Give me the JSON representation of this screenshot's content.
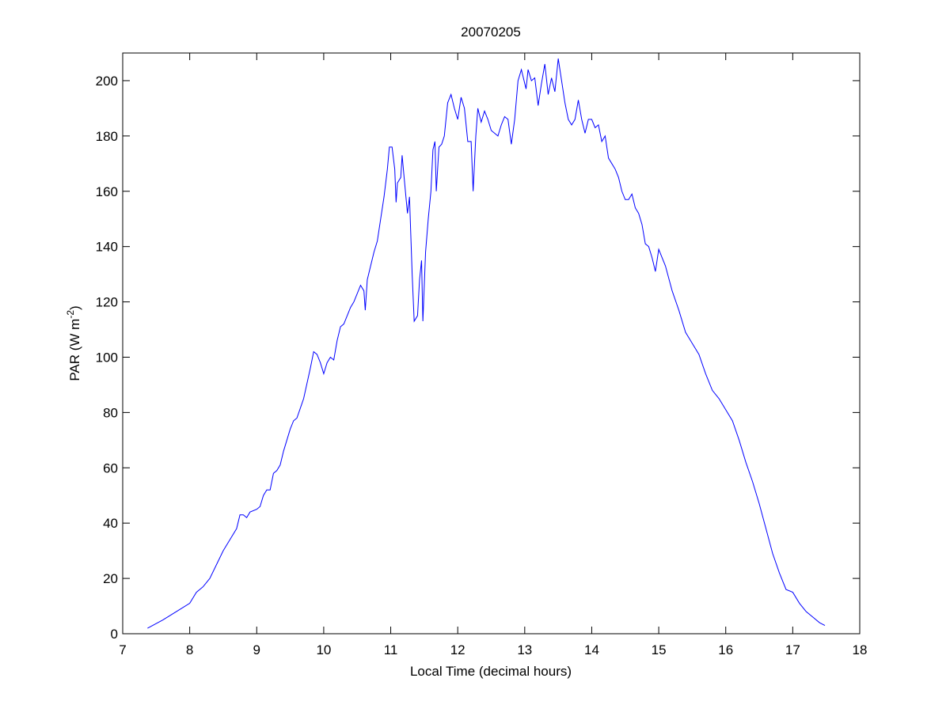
{
  "chart_data": {
    "type": "line",
    "title": "20070205",
    "xlabel": "Local Time (decimal hours)",
    "ylabel": [
      "PAR (W m",
      "-2",
      ")"
    ],
    "xlim": [
      7,
      18
    ],
    "xticks": [
      7,
      8,
      9,
      10,
      11,
      12,
      13,
      14,
      15,
      16,
      17,
      18
    ],
    "ylim": [
      0,
      210
    ],
    "yticks": [
      0,
      20,
      40,
      60,
      80,
      100,
      120,
      140,
      160,
      180,
      200
    ],
    "grid": false,
    "series": [
      {
        "color": "#0000ff",
        "x": [
          7.37,
          7.6,
          7.8,
          8.0,
          8.1,
          8.2,
          8.3,
          8.4,
          8.5,
          8.6,
          8.7,
          8.75,
          8.8,
          8.85,
          8.9,
          9.0,
          9.05,
          9.1,
          9.15,
          9.2,
          9.25,
          9.3,
          9.35,
          9.4,
          9.5,
          9.55,
          9.6,
          9.7,
          9.8,
          9.85,
          9.9,
          9.95,
          10.0,
          10.05,
          10.1,
          10.15,
          10.2,
          10.25,
          10.3,
          10.4,
          10.45,
          10.5,
          10.55,
          10.6,
          10.62,
          10.65,
          10.7,
          10.75,
          10.8,
          10.85,
          10.9,
          10.95,
          10.98,
          11.02,
          11.06,
          11.08,
          11.1,
          11.15,
          11.17,
          11.2,
          11.25,
          11.28,
          11.32,
          11.35,
          11.4,
          11.43,
          11.46,
          11.48,
          11.52,
          11.56,
          11.6,
          11.63,
          11.66,
          11.68,
          11.72,
          11.76,
          11.8,
          11.85,
          11.9,
          11.95,
          12.0,
          12.05,
          12.1,
          12.15,
          12.2,
          12.23,
          12.27,
          12.3,
          12.35,
          12.4,
          12.45,
          12.5,
          12.55,
          12.6,
          12.65,
          12.7,
          12.75,
          12.8,
          12.85,
          12.9,
          12.95,
          13.0,
          13.02,
          13.05,
          13.1,
          13.15,
          13.2,
          13.25,
          13.3,
          13.35,
          13.4,
          13.45,
          13.5,
          13.55,
          13.6,
          13.65,
          13.7,
          13.75,
          13.8,
          13.85,
          13.9,
          13.95,
          14.0,
          14.05,
          14.1,
          14.15,
          14.2,
          14.25,
          14.3,
          14.35,
          14.4,
          14.45,
          14.5,
          14.55,
          14.6,
          14.65,
          14.7,
          14.75,
          14.8,
          14.85,
          14.9,
          14.95,
          15.0,
          15.1,
          15.2,
          15.3,
          15.4,
          15.5,
          15.6,
          15.7,
          15.8,
          15.9,
          16.0,
          16.1,
          16.2,
          16.3,
          16.4,
          16.5,
          16.6,
          16.7,
          16.8,
          16.9,
          17.0,
          17.1,
          17.2,
          17.3,
          17.4,
          17.48
        ],
        "values": [
          2,
          5,
          8,
          11,
          15,
          17,
          20,
          25,
          30,
          34,
          38,
          43,
          43,
          42,
          44,
          45,
          46,
          50,
          52,
          52,
          58,
          59,
          61,
          66,
          74,
          77,
          78,
          85,
          96,
          102,
          101,
          98,
          94,
          98,
          100,
          99,
          106,
          111,
          112,
          118,
          120,
          123,
          126,
          124,
          117,
          128,
          133,
          138,
          142,
          150,
          158,
          168,
          176,
          176,
          168,
          156,
          163,
          165,
          173,
          165,
          152,
          158,
          130,
          113,
          115,
          128,
          135,
          113,
          138,
          150,
          160,
          175,
          178,
          160,
          176,
          177,
          180,
          192,
          195,
          190,
          186,
          194,
          190,
          178,
          178,
          160,
          180,
          190,
          185,
          189,
          186,
          182,
          181,
          180,
          184,
          187,
          186,
          177,
          186,
          200,
          204,
          199,
          197,
          204,
          200,
          201,
          191,
          199,
          206,
          195,
          201,
          196,
          208,
          200,
          192,
          186,
          184,
          186,
          193,
          186,
          181,
          186,
          186,
          183,
          184,
          178,
          180,
          172,
          170,
          168,
          165,
          160,
          157,
          157,
          159,
          154,
          152,
          148,
          141,
          140,
          136,
          131,
          139,
          133,
          124,
          117,
          109,
          105,
          101,
          94,
          88,
          85,
          81,
          77,
          70,
          62,
          55,
          47,
          38,
          29,
          22,
          16,
          15,
          11,
          8,
          6,
          4,
          3
        ]
      }
    ]
  }
}
